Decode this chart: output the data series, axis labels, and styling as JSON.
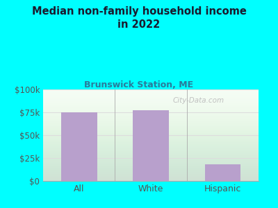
{
  "title": "Median non-family household income\nin 2022",
  "subtitle": "Brunswick Station, ME",
  "categories": [
    "All",
    "White",
    "Hispanic"
  ],
  "values": [
    75000,
    77000,
    18000
  ],
  "bar_color": "#b8a0cc",
  "background_outer": "#00ffff",
  "background_plot": "#f0f8f0",
  "title_color": "#1a1a2e",
  "subtitle_color": "#2a7a9a",
  "tick_label_color": "#555555",
  "ytick_labels": [
    "$0",
    "$25k",
    "$50k",
    "$75k",
    "$100k"
  ],
  "ytick_values": [
    0,
    25000,
    50000,
    75000,
    100000
  ],
  "ylim": [
    0,
    100000
  ],
  "watermark": "City-Data.com",
  "watermark_color": "#bbbbbb",
  "grid_color": "#dddddd"
}
